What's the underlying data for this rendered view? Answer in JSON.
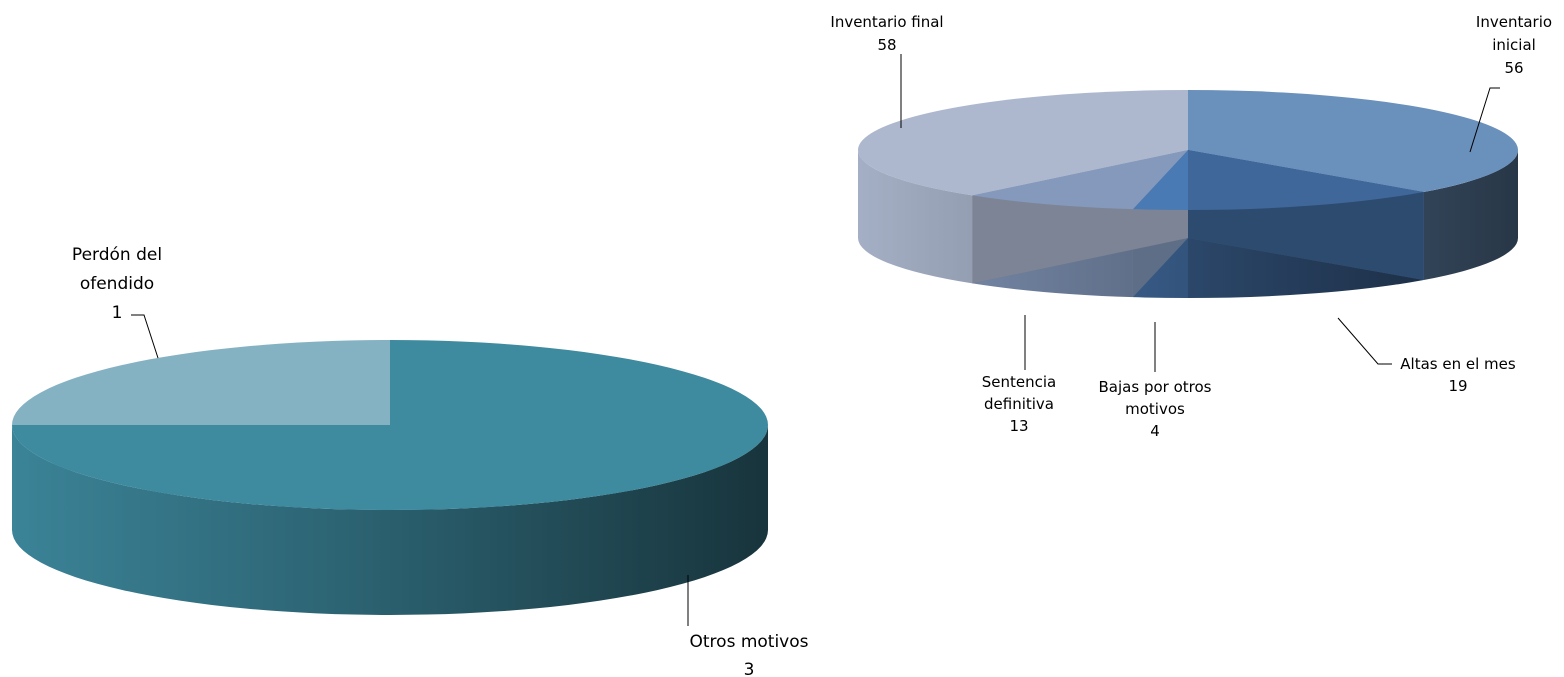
{
  "chart_data": [
    {
      "type": "pie",
      "title": "",
      "slices": [
        {
          "label": [
            "Perdón del",
            "ofendido"
          ],
          "value": 1,
          "value_text": "1",
          "color": "#85B2C3"
        },
        {
          "label": [
            "Otros motivos"
          ],
          "value": 3,
          "value_text": "3",
          "color": "#3E8A9F"
        }
      ]
    },
    {
      "type": "pie",
      "title": "",
      "slices": [
        {
          "label": [
            "Inventario",
            "inicial"
          ],
          "value": 56,
          "value_text": "56",
          "color": "#6A90BC"
        },
        {
          "label": [
            "Altas en el mes"
          ],
          "value": 19,
          "value_text": "19",
          "color": "#3F679A"
        },
        {
          "label": [
            "Bajas por otros",
            "motivos"
          ],
          "value": 4,
          "value_text": "4",
          "color": "#4A7AB4"
        },
        {
          "label": [
            "Sentencia",
            "definitiva"
          ],
          "value": 13,
          "value_text": "13",
          "color": "#8499BC"
        },
        {
          "label": [
            "Inventario final"
          ],
          "value": 58,
          "value_text": "58",
          "color": "#ADB8CF"
        }
      ]
    }
  ]
}
